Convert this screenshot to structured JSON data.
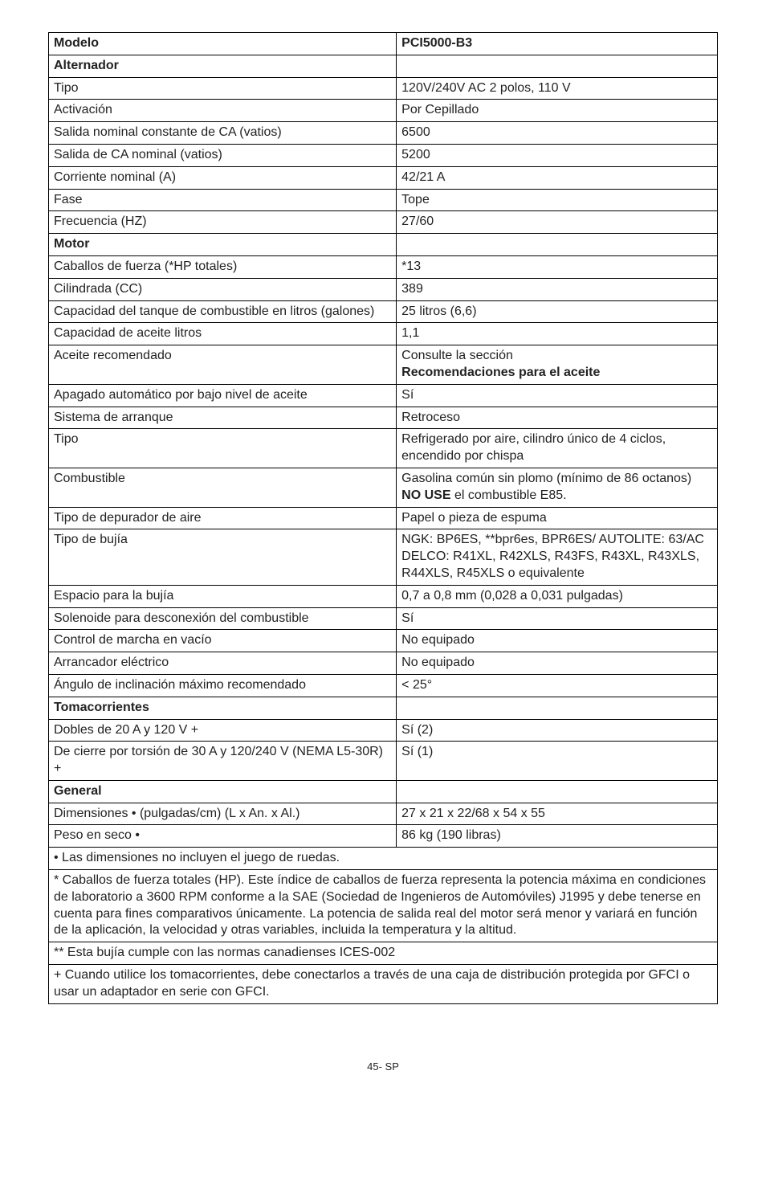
{
  "header": {
    "col1": "Modelo",
    "col2": "PCI5000-B3"
  },
  "sections": {
    "alternador": {
      "title": "Alternador"
    },
    "motor": {
      "title": "Motor"
    },
    "tomacorrientes": {
      "title": "Tomacorrientes"
    },
    "general": {
      "title": "General"
    }
  },
  "rows": {
    "tipo": {
      "label": "Tipo",
      "value": "120V/240V AC 2 polos, 110 V"
    },
    "activacion": {
      "label": "Activación",
      "value": "Por Cepillado"
    },
    "salida_nominal_constante": {
      "label": "Salida nominal constante de CA (vatios)",
      "value": "6500"
    },
    "salida_ca_nominal": {
      "label": "Salida de CA nominal (vatios)",
      "value": "5200"
    },
    "corriente_nominal": {
      "label": "Corriente nominal (A)",
      "value": "42/21 A"
    },
    "fase": {
      "label": "Fase",
      "value": "Tope"
    },
    "frecuencia": {
      "label": "Frecuencia (HZ)",
      "value": "27/60"
    },
    "caballos": {
      "label": "Caballos de fuerza (*HP totales)",
      "value": "*13"
    },
    "cilindrada": {
      "label": "Cilindrada (CC)",
      "value": "389"
    },
    "capacidad_tanque": {
      "label": "Capacidad del tanque de combustible en litros (galones)",
      "value": "25 litros (6,6)"
    },
    "capacidad_aceite": {
      "label": "Capacidad de aceite litros",
      "value": "1,1"
    },
    "aceite_recomendado": {
      "label": "Aceite recomendado",
      "value_line1": "Consulte la sección",
      "value_line2": "Recomendaciones para el aceite"
    },
    "apagado_auto": {
      "label": "Apagado automático por bajo nivel de aceite",
      "value": "Sí"
    },
    "sistema_arranque": {
      "label": "Sistema de arranque",
      "value": "Retroceso"
    },
    "tipo_motor": {
      "label": "Tipo",
      "value": "Refrigerado por aire, cilindro único de 4 ciclos, encendido por chispa"
    },
    "combustible": {
      "label": "Combustible",
      "value_line1": "Gasolina común sin plomo (mínimo de 86 octanos)",
      "value_line2_pre": "NO USE",
      "value_line2_post": " el combustible E85."
    },
    "depurador": {
      "label": "Tipo de depurador de aire",
      "value": "Papel o pieza de espuma"
    },
    "bujia": {
      "label": "Tipo de bujía",
      "value": "NGK: BP6ES, **bpr6es, BPR6ES/ AUTOLITE: 63/AC DELCO: R41XL, R42XLS, R43FS, R43XL, R43XLS, R44XLS, R45XLS o equivalente"
    },
    "espacio_bujia": {
      "label": "Espacio para la bujía",
      "value": "0,7 a 0,8 mm (0,028 a 0,031 pulgadas)"
    },
    "solenoide": {
      "label": "Solenoide para desconexión del combustible",
      "value": "Sí"
    },
    "control_marcha": {
      "label": "Control de marcha en vacío",
      "value": "No equipado"
    },
    "arrancador": {
      "label": "Arrancador eléctrico",
      "value": "No equipado"
    },
    "angulo": {
      "label": "Ángulo de inclinación máximo recomendado",
      "value": "< 25°"
    },
    "dobles": {
      "label": "Dobles de 20 A y 120 V +",
      "value": "Sí (2)"
    },
    "cierre": {
      "label": "De cierre por torsión de 30 A y 120/240 V (NEMA L5-30R) +",
      "value": "Sí (1)"
    },
    "dimensiones": {
      "label": "Dimensiones • (pulgadas/cm) (L x An. x Al.)",
      "value": "27 x 21 x 22/68 x 54 x 55"
    },
    "peso": {
      "label": "Peso en seco •",
      "value": "86 kg (190 libras)"
    }
  },
  "notes": {
    "n1": "• Las dimensiones no incluyen el juego de ruedas.",
    "n2": "* Caballos de fuerza totales (HP). Este índice de caballos de fuerza representa la potencia máxima en condiciones de laboratorio a 3600 RPM conforme a la SAE (Sociedad de Ingenieros de Automóviles) J1995 y debe tenerse en cuenta para fines comparativos únicamente. La potencia de salida real del motor será menor y variará en función de la aplicación, la velocidad y otras variables, incluida la temperatura y la altitud.",
    "n3": "** Esta bujía cumple con las normas canadienses ICES-002",
    "n4": "+ Cuando utilice los tomacorrientes, debe conectarlos a través de una caja de distribución protegida por GFCI o usar un adaptador en serie con GFCI."
  },
  "footer": "45- SP"
}
